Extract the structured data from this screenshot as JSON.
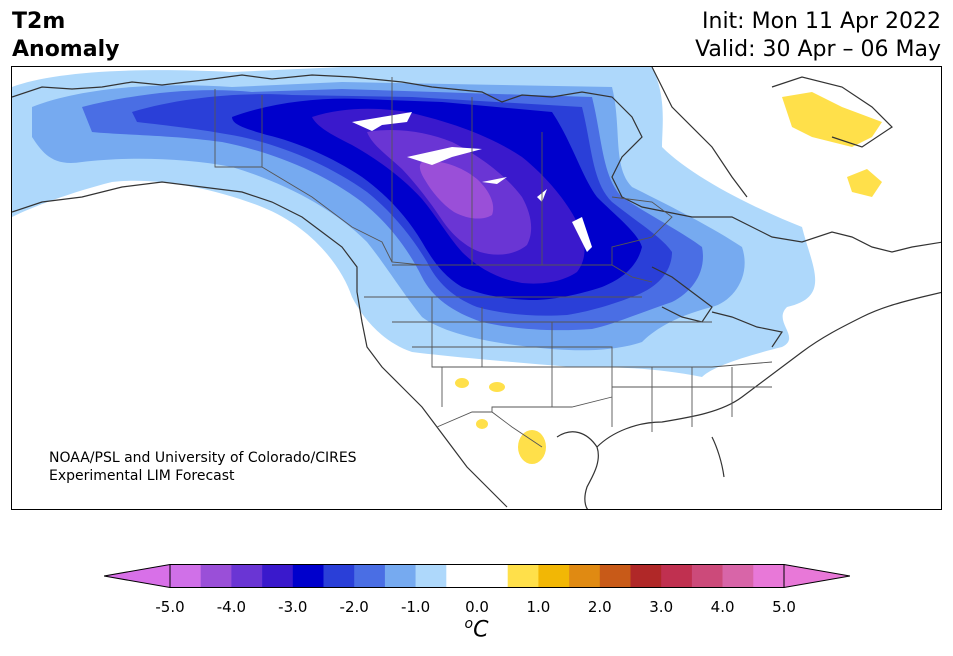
{
  "header": {
    "variable": "T2m",
    "field": "Anomaly",
    "init": "Init: Mon 11 Apr 2022",
    "valid": "Valid: 30 Apr – 06 May"
  },
  "credit": {
    "line1": "NOAA/PSL and University of Colorado/CIRES",
    "line2": "Experimental LIM Forecast"
  },
  "colorbar": {
    "unit_base": "C",
    "unit_sup": "o",
    "tick_labels": [
      "-5.0",
      "-4.0",
      "-3.0",
      "-2.0",
      "-1.0",
      "0.0",
      "1.0",
      "2.0",
      "3.0",
      "4.0",
      "5.0"
    ],
    "colors": [
      "#d070e8",
      "#9a4fd8",
      "#6a35d4",
      "#3a19cc",
      "#0000cc",
      "#2a3fd8",
      "#4a6ee4",
      "#76aaf0",
      "#aed8fb",
      "#ffffff",
      "#ffffff",
      "#ffe04a",
      "#f2b705",
      "#e08a12",
      "#c85a18",
      "#b02828",
      "#c03050",
      "#cc4a7a",
      "#d865a8",
      "#e878d8"
    ],
    "extend_low": "#d870e8",
    "extend_high": "#e878d8"
  },
  "colors": {
    "coast": "#333333",
    "state_border": "#555555"
  }
}
